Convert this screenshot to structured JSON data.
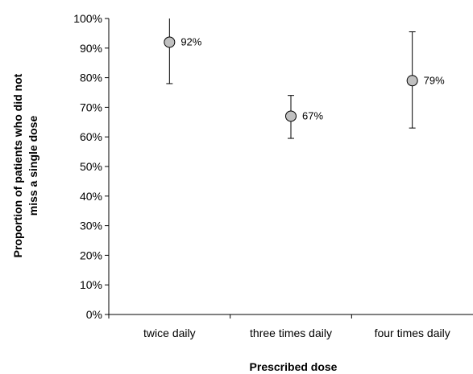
{
  "chart_data": {
    "type": "scatter",
    "title": "",
    "xlabel": "Prescribed dose",
    "ylabel_lines": [
      "Proportion of patients who did not",
      "miss a single dose"
    ],
    "categories": [
      "twice daily",
      "three times daily",
      "four times daily"
    ],
    "values": [
      92,
      67,
      79
    ],
    "data_labels": [
      "92%",
      "67%",
      "79%"
    ],
    "error_low": [
      78,
      59.5,
      63
    ],
    "error_high": [
      100,
      74,
      95.5
    ],
    "ylim": [
      0,
      100
    ],
    "y_ticks": [
      0,
      10,
      20,
      30,
      40,
      50,
      60,
      70,
      80,
      90,
      100
    ],
    "y_tick_labels": [
      "0%",
      "10%",
      "20%",
      "30%",
      "40%",
      "50%",
      "60%",
      "70%",
      "80%",
      "90%",
      "100%"
    ],
    "grid": false,
    "legend": "none",
    "colors": {
      "marker_fill": "#c0c0c0",
      "marker_stroke": "#000000",
      "axis": "#000000",
      "error_bar": "#000000"
    }
  }
}
